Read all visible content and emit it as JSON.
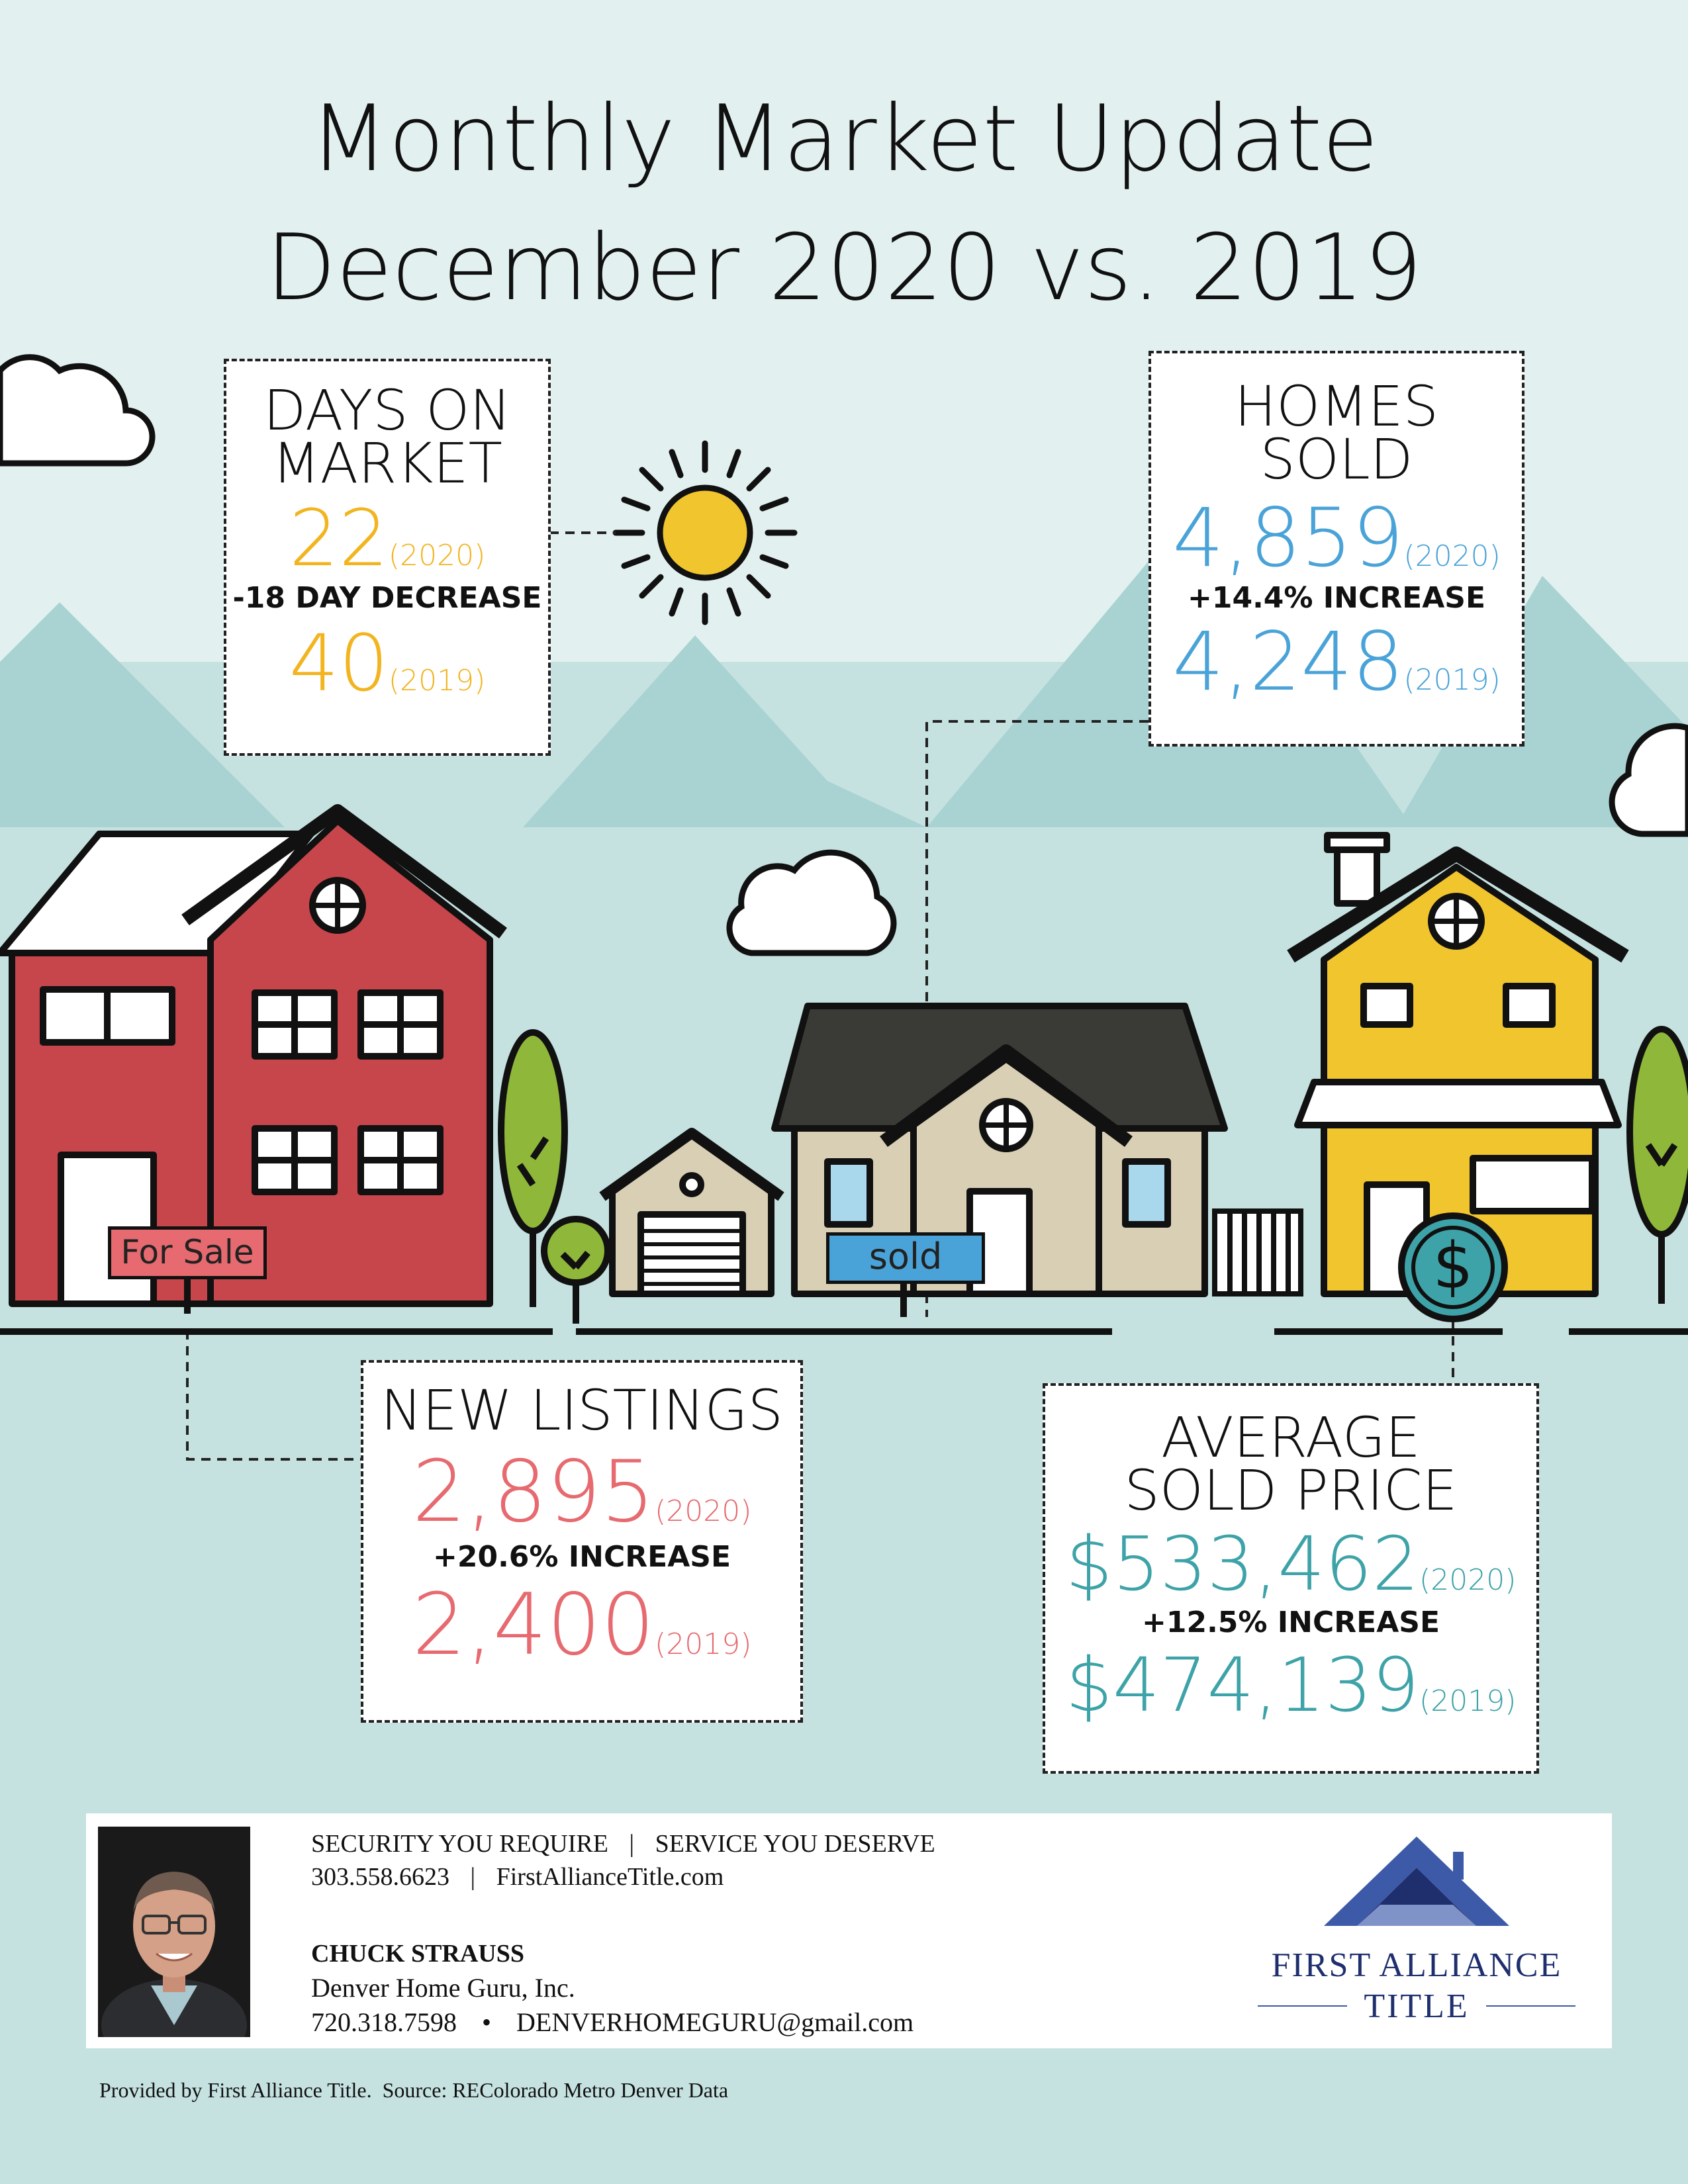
{
  "title": {
    "line1": "Monthly Market Update",
    "line2": "December 2020 vs. 2019"
  },
  "days_on_market": {
    "heading_1": "DAYS ON",
    "heading_2": "MARKET",
    "value_2020": "22",
    "label_2020": "(2020)",
    "change": "-18 DAY DECREASE",
    "value_2019": "40",
    "label_2019": "(2019)",
    "color": "#f2b41f"
  },
  "homes_sold": {
    "heading_1": "HOMES",
    "heading_2": "SOLD",
    "value_2020": "4,859",
    "label_2020": "(2020)",
    "change": "+14.4% INCREASE",
    "value_2019": "4,248",
    "label_2019": "(2019)",
    "color": "#4aa3d8"
  },
  "new_listings": {
    "heading": "NEW LISTINGS",
    "value_2020": "2,895",
    "label_2020": "(2020)",
    "change": "+20.6% INCREASE",
    "value_2019": "2,400",
    "label_2019": "(2019)",
    "color": "#e66a6f"
  },
  "average_sold_price": {
    "heading_1": "AVERAGE",
    "heading_2": "SOLD PRICE",
    "value_2020": "$533,462",
    "label_2020": "(2020)",
    "change": "+12.5% INCREASE",
    "value_2019": "$474,139",
    "label_2019": "(2019)",
    "color": "#3ea3a8"
  },
  "signs": {
    "for_sale": "For Sale",
    "sold": "sold",
    "dollar": "$"
  },
  "illustration_icons": [
    "cloud-icon",
    "sun-icon",
    "mountain-icon",
    "house-icon",
    "tree-icon",
    "garage-icon",
    "dollar-coin-icon"
  ],
  "colors": {
    "background": "#c5e2e1",
    "mountains": "#a9d3d2",
    "red_house": "#c7464b",
    "beige_house": "#d8cfb4",
    "yellow_house": "#f0c52d",
    "tree": "#8fb83a",
    "roof": "#3a3a36"
  },
  "footer": {
    "tagline_1": "SECURITY YOU REQUIRE",
    "tagline_sep": "|",
    "tagline_2": "SERVICE YOU DESERVE",
    "phone": "303.558.6623",
    "contact_sep": "|",
    "website": "FirstAllianceTitle.com",
    "agent_name": "CHUCK STRAUSS",
    "agent_company": "Denver Home Guru, Inc.",
    "agent_phone": "720.318.7598",
    "agent_sep": "•",
    "agent_email": "DENVERHOMEGURU@gmail.com",
    "logo_line1": "FIRST ALLIANCE",
    "logo_line2": "TITLE"
  },
  "source_note": "Provided by First Alliance Title.  Source: REColorado Metro Denver Data"
}
